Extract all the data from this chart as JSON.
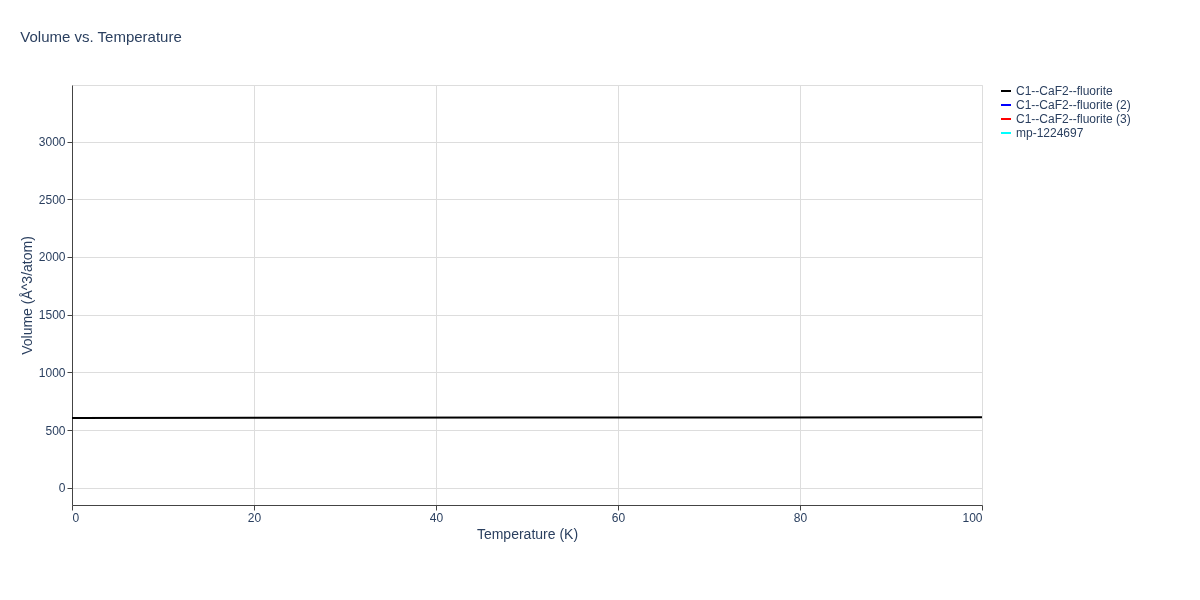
{
  "chart_data": {
    "type": "line",
    "title": "Volume vs. Temperature",
    "xlabel": "Temperature (K)",
    "ylabel": "Volume (Å^3/atom)",
    "xlim": [
      0,
      100
    ],
    "xticks": [
      0,
      20,
      40,
      60,
      80,
      100
    ],
    "ylim": [
      -150,
      3490
    ],
    "yticks": [
      0,
      500,
      1000,
      1500,
      2000,
      2500,
      3000
    ],
    "grid": true,
    "legend": "top right",
    "marker": "none",
    "line_style": "solid",
    "series": [
      {
        "name": "C1--CaF2--fluorite",
        "color": "#000000",
        "x": [
          0,
          100
        ],
        "values": [
          605,
          610
        ]
      },
      {
        "name": "C1--CaF2--fluorite (2)",
        "color": "#0000ff",
        "values": [
          null,
          null
        ]
      },
      {
        "name": "C1--CaF2--fluorite (3)",
        "color": "#ff0000",
        "values": [
          null,
          null
        ]
      },
      {
        "name": "mp-1224697",
        "color": "#00ffff",
        "values": [
          null,
          null
        ]
      }
    ]
  }
}
